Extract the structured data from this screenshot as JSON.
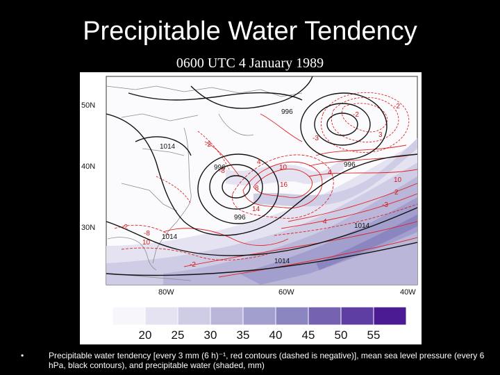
{
  "slide": {
    "title": "Precipitable Water Tendency",
    "subtitle": "0600 UTC 4 January 1989",
    "bullet": "•",
    "caption": "Precipitable water tendency [every 3 mm (6 h)⁻¹, red contours (dashed is negative)], mean sea level pressure (every 6 hPa, black contours), and precipitable water (shaded, mm)"
  },
  "map": {
    "lat_labels": [
      "50N",
      "40N",
      "30N"
    ],
    "lon_labels": [
      "80W",
      "60W",
      "40W"
    ],
    "pressure_labels": [
      "996",
      "1014",
      "996",
      "996",
      "996",
      "1014",
      "1014",
      "1014"
    ],
    "tendency_labels": [
      "-2",
      "-2",
      "-3",
      "3",
      "-8",
      "8",
      "10",
      "16",
      "14",
      "4",
      "-2",
      "-3",
      "4",
      "2",
      "10",
      "-2",
      "-8",
      "10",
      "-2",
      "4"
    ],
    "colors": {
      "pressure": "#111111",
      "tendency": "#e02020",
      "land": "#888888"
    }
  },
  "colorbar": {
    "labels": [
      "20",
      "25",
      "30",
      "35",
      "40",
      "45",
      "50",
      "55"
    ],
    "colors": [
      "#f7f6fb",
      "#e5e3f1",
      "#cfcde6",
      "#b9b6da",
      "#a29ecd",
      "#8c86c0",
      "#7563b2",
      "#5f3ea3",
      "#4b1b93"
    ]
  }
}
